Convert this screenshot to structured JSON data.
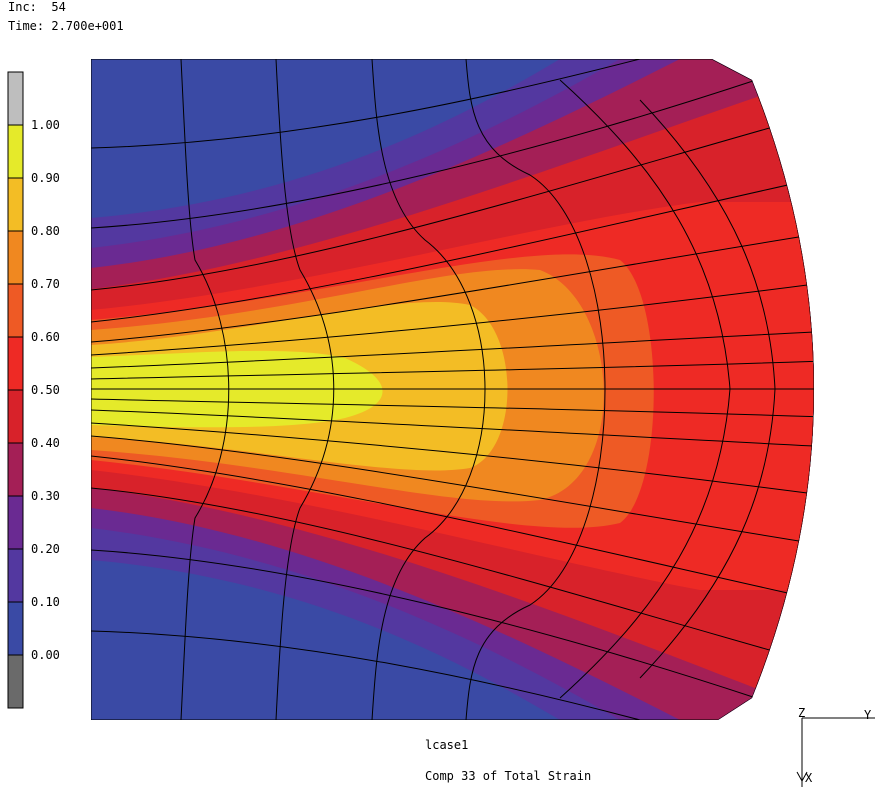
{
  "header": {
    "inc_label": "Inc:",
    "inc_value": "54",
    "time_label": "Time:",
    "time_value": "2.700e+001"
  },
  "legend": {
    "ticks": [
      "1.00",
      "0.90",
      "0.80",
      "0.70",
      "0.60",
      "0.50",
      "0.40",
      "0.30",
      "0.20",
      "0.10",
      "0.00"
    ],
    "colors": [
      "#bebebe",
      "#e5ea2a",
      "#f3bd25",
      "#f08820",
      "#ee5a25",
      "#ee2a25",
      "#d8222a",
      "#a41f56",
      "#6a2a92",
      "#5338a0",
      "#3a4aa5",
      "#6a6a6a"
    ]
  },
  "footer": {
    "case_name": "lcase1",
    "result_name": "Comp 33 of Total Strain"
  },
  "axes": {
    "z_label": "Z",
    "y_label": "Y",
    "x_label": "X"
  },
  "contour_colors": {
    "band_0": "#3a4aa5",
    "band_1": "#5338a0",
    "band_2": "#6a2a92",
    "band_3": "#a41f56",
    "band_4": "#d8222a",
    "band_5": "#ee2a25",
    "band_6": "#ee5a25",
    "band_7": "#f08820",
    "band_8": "#f3bd25",
    "band_9": "#e5ea2a"
  }
}
